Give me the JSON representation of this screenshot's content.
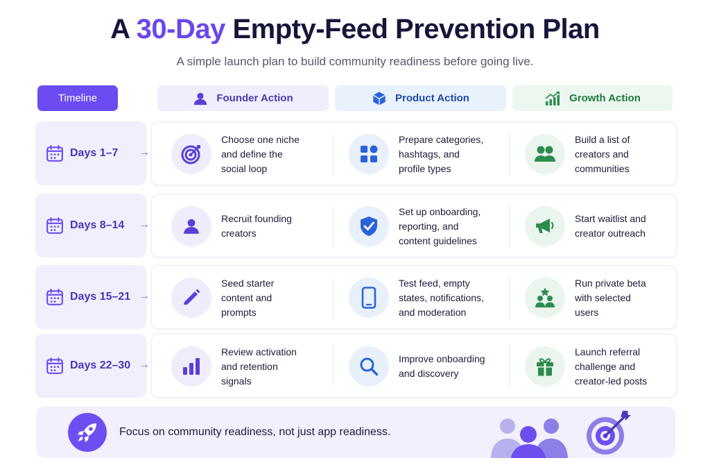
{
  "title": {
    "prefix": "A ",
    "accent": "30-Day",
    "rest": " Empty-Feed Prevention Plan"
  },
  "subtitle": "A simple launch plan to build community readiness before going live.",
  "headers": {
    "timeline": "Timeline",
    "founder": "Founder Action",
    "product": "Product Action",
    "growth": "Growth Action"
  },
  "rows": [
    {
      "days": "Days 1–7",
      "founder": {
        "text": "Choose one niche\nand define the\nsocial loop",
        "icon": "target-icon"
      },
      "product": {
        "text": "Prepare categories,\nhashtags, and\nprofile types",
        "icon": "grid-icon"
      },
      "growth": {
        "text": "Build a list of\ncreators and\ncommunities",
        "icon": "people-icon"
      }
    },
    {
      "days": "Days 8–14",
      "founder": {
        "text": "Recruit founding\ncreators",
        "icon": "person-icon"
      },
      "product": {
        "text": "Set up onboarding,\nreporting, and\ncontent guidelines",
        "icon": "shield-check-icon"
      },
      "growth": {
        "text": "Start waitlist and\ncreator outreach",
        "icon": "megaphone-icon"
      }
    },
    {
      "days": "Days 15–21",
      "founder": {
        "text": "Seed starter\ncontent and\nprompts",
        "icon": "pencil-icon"
      },
      "product": {
        "text": "Test feed, empty\nstates, notifications,\nand moderation",
        "icon": "phone-icon"
      },
      "growth": {
        "text": "Run private beta\nwith selected\nusers",
        "icon": "star-people-icon"
      }
    },
    {
      "days": "Days 22–30",
      "founder": {
        "text": "Review activation\nand retention\nsignals",
        "icon": "bar-chart-icon"
      },
      "product": {
        "text": "Improve onboarding\nand discovery",
        "icon": "search-icon"
      },
      "growth": {
        "text": "Launch referral\nchallenge and\ncreator-led posts",
        "icon": "gift-icon"
      }
    }
  ],
  "footer": {
    "text": "Focus on community readiness, not just app readiness."
  },
  "colors": {
    "accent": "#6c47e8",
    "founder": "#5b3fd6",
    "product": "#2a63d8",
    "growth": "#2e8b4e"
  }
}
